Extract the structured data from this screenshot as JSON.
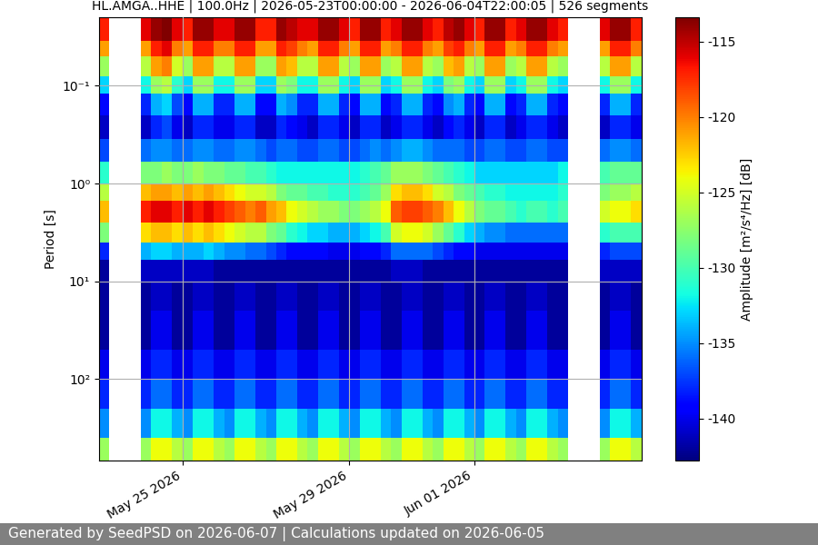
{
  "chart_data": {
    "type": "heatmap",
    "title": "HL.AMGA..HHE | 100.0Hz | 2026-05-23T00:00:00 - 2026-06-04T22:00:05 | 526 segments",
    "y_label": "Period [s]",
    "colorbar_label": "Amplitude [m²/s⁴/Hz] [dB]",
    "footer": "Generated by SeedPSD on 2026-06-07 | Calculations updated on 2026-06-05",
    "color": "jet",
    "log": "y",
    "grid": true,
    "xlim": [
      "2026-05-23T00:00",
      "2026-06-05T00:00"
    ],
    "xticks": [
      {
        "value": "2026-05-25T00:00",
        "label": "May 25 2026"
      },
      {
        "value": "2026-05-29T00:00",
        "label": "May 29 2026"
      },
      {
        "value": "2026-06-01T00:00",
        "label": "Jun 01 2026"
      }
    ],
    "ylim": [
      680,
      0.02
    ],
    "yticks": [
      {
        "value": 0.1,
        "label": "10⁻¹"
      },
      {
        "value": 1,
        "label": "10⁰"
      },
      {
        "value": 10,
        "label": "10¹"
      },
      {
        "value": 100,
        "label": "10²"
      }
    ],
    "clim": [
      -142.8,
      -113.4
    ],
    "cticks": [
      -140,
      -135,
      -130,
      -125,
      -120,
      -115
    ],
    "x_edges": [
      "2026-05-23T00:00",
      "2026-05-23T06:00",
      "2026-05-23T12:00",
      "2026-05-23T18:00",
      "2026-05-24T00:00",
      "2026-05-24T06:00",
      "2026-05-24T12:00",
      "2026-05-24T18:00",
      "2026-05-25T00:00",
      "2026-05-25T06:00",
      "2026-05-25T12:00",
      "2026-05-25T18:00",
      "2026-05-26T00:00",
      "2026-05-26T06:00",
      "2026-05-26T12:00",
      "2026-05-26T18:00",
      "2026-05-27T00:00",
      "2026-05-27T06:00",
      "2026-05-27T12:00",
      "2026-05-27T18:00",
      "2026-05-28T00:00",
      "2026-05-28T06:00",
      "2026-05-28T12:00",
      "2026-05-28T18:00",
      "2026-05-29T00:00",
      "2026-05-29T06:00",
      "2026-05-29T12:00",
      "2026-05-29T18:00",
      "2026-05-30T00:00",
      "2026-05-30T06:00",
      "2026-05-30T12:00",
      "2026-05-30T18:00",
      "2026-05-31T00:00",
      "2026-05-31T06:00",
      "2026-05-31T12:00",
      "2026-05-31T18:00",
      "2026-06-01T00:00",
      "2026-06-01T06:00",
      "2026-06-01T12:00",
      "2026-06-01T18:00",
      "2026-06-02T00:00",
      "2026-06-02T06:00",
      "2026-06-02T12:00",
      "2026-06-02T18:00",
      "2026-06-03T00:00",
      "2026-06-03T06:00",
      "2026-06-03T12:00",
      "2026-06-03T18:00",
      "2026-06-04T00:00",
      "2026-06-04T06:00",
      "2026-06-04T12:00",
      "2026-06-04T18:00",
      "2026-06-05T00:00"
    ],
    "y_edges": [
      0.02,
      0.035,
      0.05,
      0.08,
      0.12,
      0.2,
      0.35,
      0.6,
      1,
      1.5,
      2.5,
      4,
      6,
      10,
      20,
      50,
      100,
      200,
      400,
      680
    ],
    "cells": [
      [
        -117,
        null,
        null,
        null,
        -116,
        -114,
        -113.5,
        -116,
        -117,
        -114,
        -114,
        -116,
        -116,
        -114,
        -114,
        -117,
        -117,
        -114,
        -115,
        -116,
        -116,
        -114,
        -114,
        -116,
        -117,
        -114,
        -114,
        -117,
        -116,
        -114,
        -114,
        -116,
        -117,
        -115,
        -114,
        -116,
        -117,
        -114,
        -114,
        -117,
        -116,
        -114,
        -114,
        -116,
        -117,
        null,
        null,
        null,
        -116,
        -114,
        -114,
        -117
      ],
      [
        -121,
        null,
        null,
        null,
        -121,
        -117,
        -116,
        -120,
        -121,
        -117,
        -117,
        -120,
        -120,
        -117,
        -117,
        -121,
        -121,
        -117,
        -118,
        -120,
        -121,
        -117,
        -117,
        -120,
        -121,
        -117,
        -117,
        -121,
        -120,
        -117,
        -117,
        -120,
        -121,
        -118,
        -117,
        -120,
        -121,
        -117,
        -117,
        -121,
        -120,
        -117,
        -117,
        -120,
        -121,
        null,
        null,
        null,
        -121,
        -117,
        -117,
        -120
      ],
      [
        -127,
        null,
        null,
        null,
        -126,
        -121,
        -120,
        -125,
        -127,
        -121,
        -121,
        -126,
        -126,
        -121,
        -121,
        -127,
        -127,
        -121,
        -122,
        -126,
        -126,
        -121,
        -121,
        -126,
        -127,
        -121,
        -121,
        -127,
        -126,
        -121,
        -121,
        -126,
        -127,
        -122,
        -121,
        -126,
        -127,
        -121,
        -121,
        -127,
        -126,
        -121,
        -121,
        -126,
        -127,
        null,
        null,
        null,
        -126,
        -121,
        -121,
        -126
      ],
      [
        -133,
        null,
        null,
        null,
        -132,
        -127,
        -126,
        -131,
        -133,
        -127,
        -127,
        -132,
        -132,
        -127,
        -127,
        -133,
        -133,
        -127,
        -128,
        -132,
        -132,
        -127,
        -127,
        -132,
        -133,
        -127,
        -127,
        -133,
        -132,
        -127,
        -127,
        -132,
        -133,
        -128,
        -127,
        -132,
        -133,
        -127,
        -127,
        -133,
        -132,
        -127,
        -127,
        -132,
        -133,
        null,
        null,
        null,
        -132,
        -127,
        -127,
        -132
      ],
      [
        -139,
        null,
        null,
        null,
        -138,
        -134,
        -133,
        -137,
        -139,
        -134,
        -134,
        -138,
        -138,
        -134,
        -134,
        -139,
        -139,
        -134,
        -135,
        -138,
        -138,
        -134,
        -134,
        -138,
        -139,
        -134,
        -134,
        -139,
        -138,
        -134,
        -134,
        -138,
        -139,
        -135,
        -134,
        -138,
        -139,
        -134,
        -134,
        -139,
        -138,
        -134,
        -134,
        -138,
        -139,
        null,
        null,
        null,
        -138,
        -134,
        -134,
        -138
      ],
      [
        -141,
        null,
        null,
        null,
        -141,
        -138,
        -137,
        -140,
        -141,
        -138,
        -138,
        -140,
        -140,
        -138,
        -138,
        -141,
        -141,
        -138,
        -139,
        -140,
        -141,
        -138,
        -138,
        -140,
        -141,
        -138,
        -138,
        -141,
        -140,
        -138,
        -138,
        -140,
        -141,
        -139,
        -138,
        -140,
        -141,
        -138,
        -138,
        -141,
        -140,
        -138,
        -138,
        -140,
        -141,
        null,
        null,
        null,
        -141,
        -138,
        -138,
        -140
      ],
      [
        -137,
        null,
        null,
        null,
        -136,
        -135,
        -135,
        -136,
        -136,
        -135,
        -135,
        -136,
        -136,
        -135,
        -135,
        -136,
        -137,
        -136,
        -136,
        -137,
        -137,
        -136,
        -136,
        -137,
        -137,
        -136,
        -135,
        -136,
        -135,
        -134,
        -134,
        -135,
        -136,
        -136,
        -136,
        -137,
        -137,
        -136,
        -136,
        -137,
        -137,
        -136,
        -136,
        -137,
        -137,
        null,
        null,
        null,
        -136,
        -135,
        -135,
        -136
      ],
      [
        -131,
        null,
        null,
        null,
        -128,
        -128,
        -127,
        -128,
        -128,
        -127,
        -128,
        -128,
        -129,
        -129,
        -130,
        -130,
        -131,
        -132,
        -132,
        -132,
        -132,
        -132,
        -132,
        -132,
        -132,
        -131,
        -130,
        -129,
        -127,
        -127,
        -127,
        -128,
        -129,
        -130,
        -131,
        -132,
        -133,
        -133,
        -133,
        -133,
        -133,
        -133,
        -133,
        -133,
        -132,
        null,
        null,
        null,
        -130,
        -129,
        -129,
        -129
      ],
      [
        -126,
        null,
        null,
        null,
        -122,
        -121,
        -121,
        -122,
        -121,
        -122,
        -121,
        -122,
        -123,
        -124,
        -125,
        -125,
        -126,
        -128,
        -129,
        -129,
        -130,
        -130,
        -131,
        -131,
        -131,
        -130,
        -129,
        -127,
        -123,
        -122,
        -122,
        -123,
        -125,
        -126,
        -128,
        -129,
        -130,
        -131,
        -131,
        -132,
        -132,
        -132,
        -132,
        -132,
        -131,
        null,
        null,
        null,
        -128,
        -127,
        -127,
        -126
      ],
      [
        -122,
        null,
        null,
        null,
        -117,
        -116,
        -116,
        -117,
        -116,
        -117,
        -116,
        -117,
        -118,
        -119,
        -120,
        -119,
        -121,
        -122,
        -124,
        -125,
        -126,
        -127,
        -127,
        -128,
        -128,
        -127,
        -126,
        -124,
        -119,
        -118,
        -118,
        -119,
        -120,
        -122,
        -124,
        -126,
        -128,
        -129,
        -129,
        -130,
        -131,
        -130,
        -130,
        -131,
        -130,
        null,
        null,
        null,
        -125,
        -124,
        -124,
        -123
      ],
      [
        -128,
        null,
        null,
        null,
        -123,
        -122,
        -122,
        -123,
        -122,
        -123,
        -122,
        -123,
        -124,
        -125,
        -126,
        -126,
        -128,
        -129,
        -131,
        -132,
        -133,
        -133,
        -134,
        -134,
        -134,
        -133,
        -132,
        -130,
        -125,
        -124,
        -124,
        -125,
        -127,
        -129,
        -131,
        -133,
        -134,
        -135,
        -135,
        -136,
        -136,
        -136,
        -136,
        -136,
        -136,
        null,
        null,
        null,
        -131,
        -130,
        -130,
        -130
      ],
      [
        -138,
        null,
        null,
        null,
        -134,
        -133,
        -133,
        -134,
        -134,
        -134,
        -133,
        -134,
        -135,
        -135,
        -136,
        -136,
        -137,
        -138,
        -139,
        -139,
        -139,
        -139,
        -140,
        -140,
        -140,
        -139,
        -139,
        -138,
        -136,
        -136,
        -136,
        -136,
        -137,
        -138,
        -139,
        -139,
        -140,
        -140,
        -140,
        -140,
        -140,
        -140,
        -140,
        -140,
        -140,
        null,
        null,
        null,
        -138,
        -137,
        -137,
        -137
      ],
      [
        -142,
        null,
        null,
        null,
        -141,
        -141,
        -141,
        -141,
        -141,
        -141,
        -141,
        -142,
        -142,
        -142,
        -142,
        -142,
        -142,
        -142,
        -142,
        -142,
        -142,
        -142,
        -142,
        -142,
        -142,
        -142,
        -142,
        -142,
        -141,
        -141,
        -141,
        -142,
        -142,
        -142,
        -142,
        -142,
        -142,
        -142,
        -142,
        -142,
        -142,
        -142,
        -142,
        -142,
        -142,
        null,
        null,
        null,
        -141,
        -141,
        -141,
        -141
      ],
      [
        -142,
        null,
        null,
        null,
        -142,
        -141,
        -141,
        -142,
        -142,
        -141,
        -141,
        -142,
        -142,
        -141,
        -141,
        -142,
        -142,
        -141,
        -141,
        -142,
        -142,
        -141,
        -141,
        -142,
        -142,
        -141,
        -141,
        -142,
        -142,
        -141,
        -141,
        -142,
        -142,
        -141,
        -141,
        -142,
        -142,
        -141,
        -141,
        -142,
        -142,
        -141,
        -141,
        -142,
        -142,
        null,
        null,
        null,
        -142,
        -141,
        -141,
        -142
      ],
      [
        -142,
        null,
        null,
        null,
        -142,
        -140,
        -140,
        -142,
        -142,
        -140,
        -140,
        -142,
        -142,
        -140,
        -140,
        -142,
        -142,
        -140,
        -140,
        -142,
        -142,
        -140,
        -140,
        -142,
        -142,
        -140,
        -140,
        -142,
        -142,
        -140,
        -140,
        -142,
        -142,
        -140,
        -140,
        -142,
        -142,
        -140,
        -140,
        -142,
        -142,
        -140,
        -140,
        -142,
        -142,
        null,
        null,
        null,
        -142,
        -140,
        -140,
        -142
      ],
      [
        -140,
        null,
        null,
        null,
        -140,
        -138,
        -138,
        -140,
        -140,
        -138,
        -138,
        -140,
        -140,
        -138,
        -138,
        -140,
        -140,
        -138,
        -138,
        -140,
        -140,
        -138,
        -138,
        -140,
        -140,
        -138,
        -138,
        -140,
        -140,
        -138,
        -138,
        -140,
        -140,
        -138,
        -138,
        -140,
        -140,
        -138,
        -138,
        -140,
        -140,
        -138,
        -138,
        -140,
        -140,
        null,
        null,
        null,
        -140,
        -138,
        -138,
        -140
      ],
      [
        -138,
        null,
        null,
        null,
        -138,
        -136,
        -136,
        -138,
        -138,
        -136,
        -136,
        -138,
        -138,
        -136,
        -136,
        -138,
        -138,
        -136,
        -136,
        -138,
        -138,
        -136,
        -136,
        -138,
        -138,
        -136,
        -136,
        -138,
        -138,
        -136,
        -136,
        -138,
        -138,
        -136,
        -136,
        -138,
        -138,
        -136,
        -136,
        -138,
        -138,
        -136,
        -136,
        -138,
        -138,
        null,
        null,
        null,
        -138,
        -136,
        -136,
        -138
      ],
      [
        -135,
        null,
        null,
        null,
        -135,
        -132,
        -132,
        -134,
        -135,
        -132,
        -132,
        -134,
        -135,
        -132,
        -132,
        -134,
        -135,
        -132,
        -132,
        -134,
        -135,
        -132,
        -132,
        -134,
        -135,
        -132,
        -132,
        -134,
        -135,
        -132,
        -132,
        -134,
        -135,
        -132,
        -132,
        -134,
        -135,
        -132,
        -132,
        -134,
        -135,
        -132,
        -132,
        -134,
        -135,
        null,
        null,
        null,
        -135,
        -132,
        -132,
        -134
      ],
      [
        -127,
        null,
        null,
        null,
        -127,
        -124,
        -124,
        -126,
        -127,
        -124,
        -124,
        -126,
        -127,
        -124,
        -124,
        -126,
        -127,
        -124,
        -124,
        -126,
        -127,
        -124,
        -124,
        -126,
        -127,
        -124,
        -124,
        -126,
        -127,
        -124,
        -124,
        -126,
        -127,
        -124,
        -124,
        -126,
        -127,
        -124,
        -124,
        -126,
        -127,
        -124,
        -124,
        -126,
        -127,
        null,
        null,
        null,
        -127,
        -124,
        -124,
        -126
      ]
    ]
  }
}
